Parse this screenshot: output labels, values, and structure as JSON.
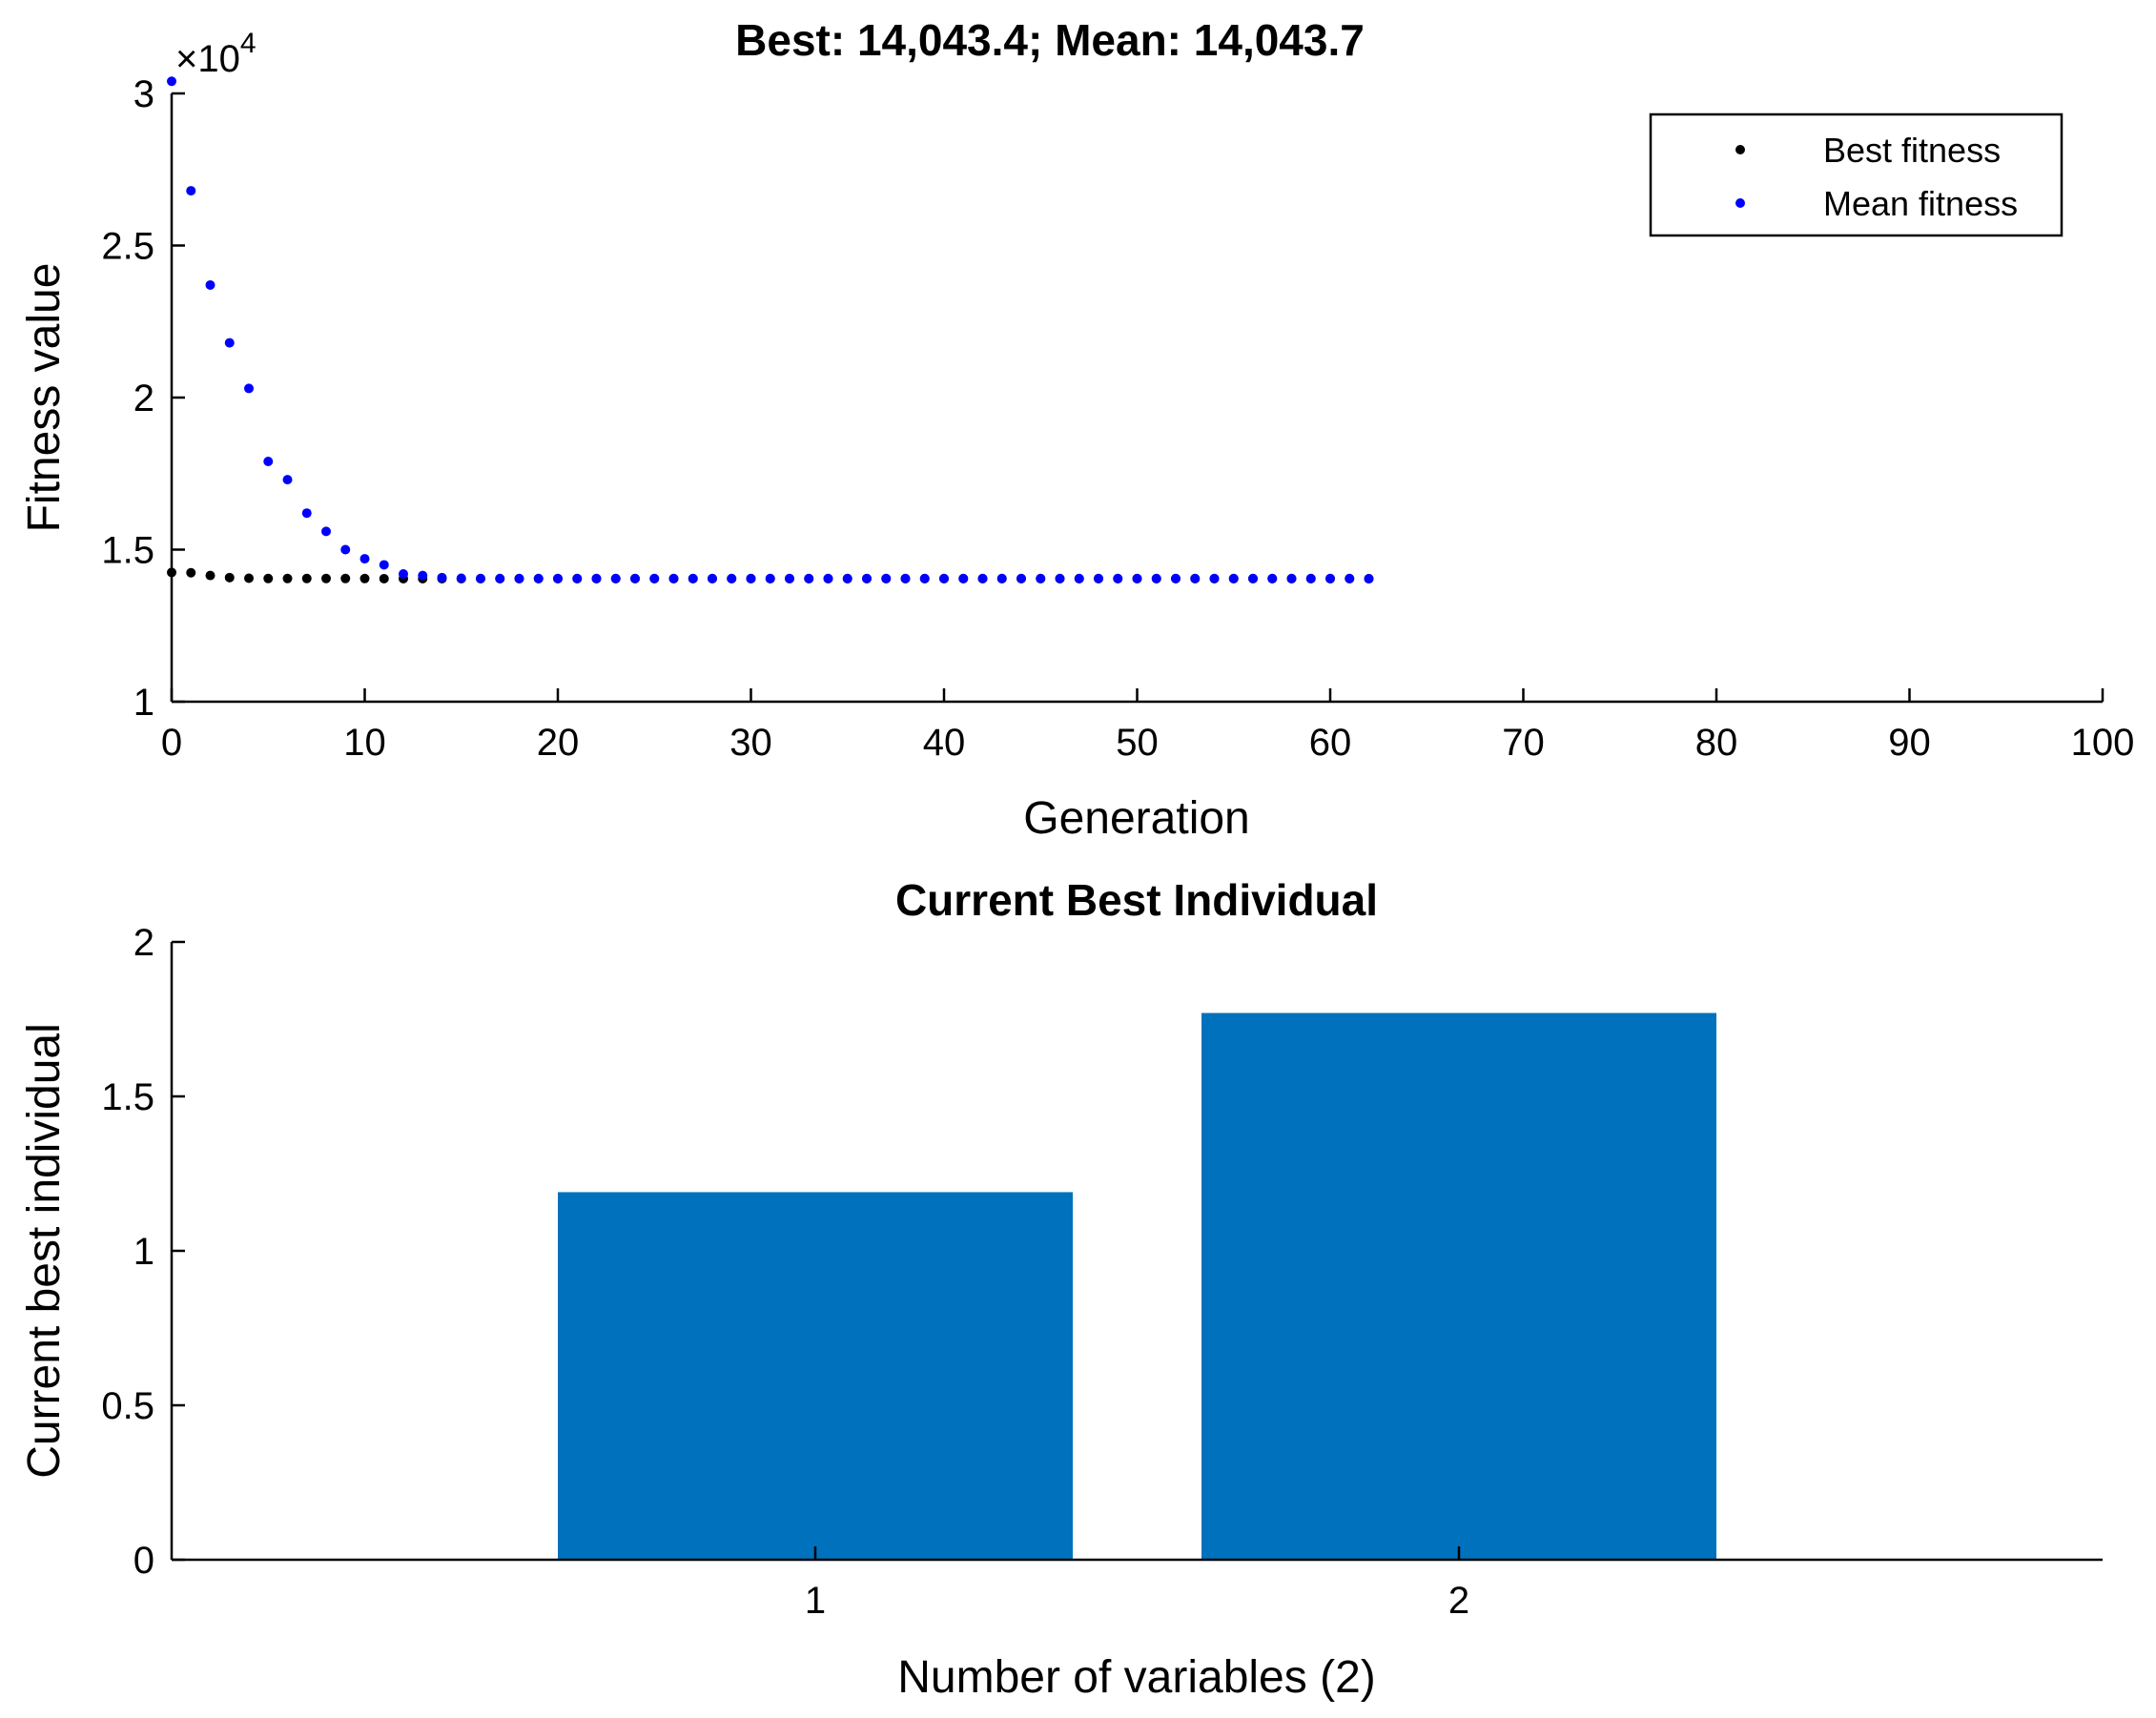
{
  "chart_data": [
    {
      "type": "scatter",
      "title": "Best: 14,043.4; Mean: 14,043.7",
      "xlabel": "Generation",
      "ylabel": "Fitness value",
      "y_exponent_label": "×10",
      "y_exponent_power": "4",
      "xlim": [
        0,
        100
      ],
      "ylim": [
        1,
        3
      ],
      "y_scale_factor": 10000,
      "xticks": [
        0,
        10,
        20,
        30,
        40,
        50,
        60,
        70,
        80,
        90,
        100
      ],
      "xtick_labels": [
        "0",
        "10",
        "20",
        "30",
        "40",
        "50",
        "60",
        "70",
        "80",
        "90",
        "100"
      ],
      "yticks": [
        1,
        1.5,
        2,
        2.5,
        3
      ],
      "ytick_labels": [
        "1",
        "1.5",
        "2",
        "2.5",
        "3"
      ],
      "grid": false,
      "legend_position": "top-right",
      "series": [
        {
          "name": "Best fitness",
          "color": "#000000",
          "x": [
            0,
            1,
            2,
            3,
            4,
            5,
            6,
            7,
            8,
            9,
            10,
            11,
            12,
            13,
            14,
            15,
            16,
            17,
            18,
            19,
            20,
            21,
            22,
            23,
            24,
            25,
            26,
            27,
            28,
            29,
            30,
            31,
            32,
            33,
            34,
            35,
            36,
            37,
            38,
            39,
            40,
            41,
            42,
            43,
            44,
            45,
            46,
            47,
            48,
            49,
            50,
            51,
            52,
            53,
            54,
            55,
            56,
            57,
            58,
            59,
            60,
            61,
            62
          ],
          "y": [
            1.425,
            1.424,
            1.415,
            1.408,
            1.406,
            1.405,
            1.405,
            1.405,
            1.405,
            1.405,
            1.405,
            1.4045,
            1.4045,
            1.4044,
            1.4044,
            1.4044,
            1.4044,
            1.4044,
            1.4044,
            1.4044,
            1.4044,
            1.4044,
            1.4044,
            1.4044,
            1.4044,
            1.4044,
            1.4044,
            1.4044,
            1.4044,
            1.4044,
            1.4044,
            1.4044,
            1.4044,
            1.4044,
            1.4044,
            1.4044,
            1.4044,
            1.4044,
            1.4044,
            1.4044,
            1.4044,
            1.4044,
            1.4044,
            1.4044,
            1.4044,
            1.4044,
            1.4044,
            1.4044,
            1.4044,
            1.4044,
            1.4044,
            1.4044,
            1.4044,
            1.4044,
            1.4044,
            1.4044,
            1.4044,
            1.4044,
            1.4044,
            1.4044,
            1.4044,
            1.4044,
            1.4043
          ]
        },
        {
          "name": "Mean fitness",
          "color": "#0000ff",
          "x": [
            0,
            1,
            2,
            3,
            4,
            5,
            6,
            7,
            8,
            9,
            10,
            11,
            12,
            13,
            14,
            15,
            16,
            17,
            18,
            19,
            20,
            21,
            22,
            23,
            24,
            25,
            26,
            27,
            28,
            29,
            30,
            31,
            32,
            33,
            34,
            35,
            36,
            37,
            38,
            39,
            40,
            41,
            42,
            43,
            44,
            45,
            46,
            47,
            48,
            49,
            50,
            51,
            52,
            53,
            54,
            55,
            56,
            57,
            58,
            59,
            60,
            61,
            62
          ],
          "y": [
            3.04,
            2.68,
            2.37,
            2.18,
            2.03,
            1.79,
            1.73,
            1.62,
            1.56,
            1.5,
            1.47,
            1.45,
            1.42,
            1.415,
            1.408,
            1.406,
            1.405,
            1.405,
            1.405,
            1.405,
            1.405,
            1.405,
            1.405,
            1.405,
            1.405,
            1.405,
            1.405,
            1.405,
            1.405,
            1.405,
            1.405,
            1.405,
            1.405,
            1.405,
            1.405,
            1.405,
            1.405,
            1.405,
            1.405,
            1.405,
            1.405,
            1.405,
            1.405,
            1.405,
            1.405,
            1.405,
            1.405,
            1.405,
            1.405,
            1.405,
            1.405,
            1.405,
            1.405,
            1.405,
            1.405,
            1.405,
            1.405,
            1.405,
            1.405,
            1.405,
            1.405,
            1.405,
            1.4044
          ]
        }
      ]
    },
    {
      "type": "bar",
      "title": "Current Best Individual",
      "xlabel": "Number of variables (2)",
      "ylabel": "Current best individual",
      "categories": [
        "1",
        "2"
      ],
      "values": [
        1.19,
        1.77
      ],
      "ylim": [
        0,
        2
      ],
      "xlim": [
        0,
        3
      ],
      "yticks": [
        0,
        0.5,
        1,
        1.5,
        2
      ],
      "ytick_labels": [
        "0",
        "0.5",
        "1",
        "1.5",
        "2"
      ],
      "bar_color": "#0072bd",
      "grid": false
    }
  ]
}
